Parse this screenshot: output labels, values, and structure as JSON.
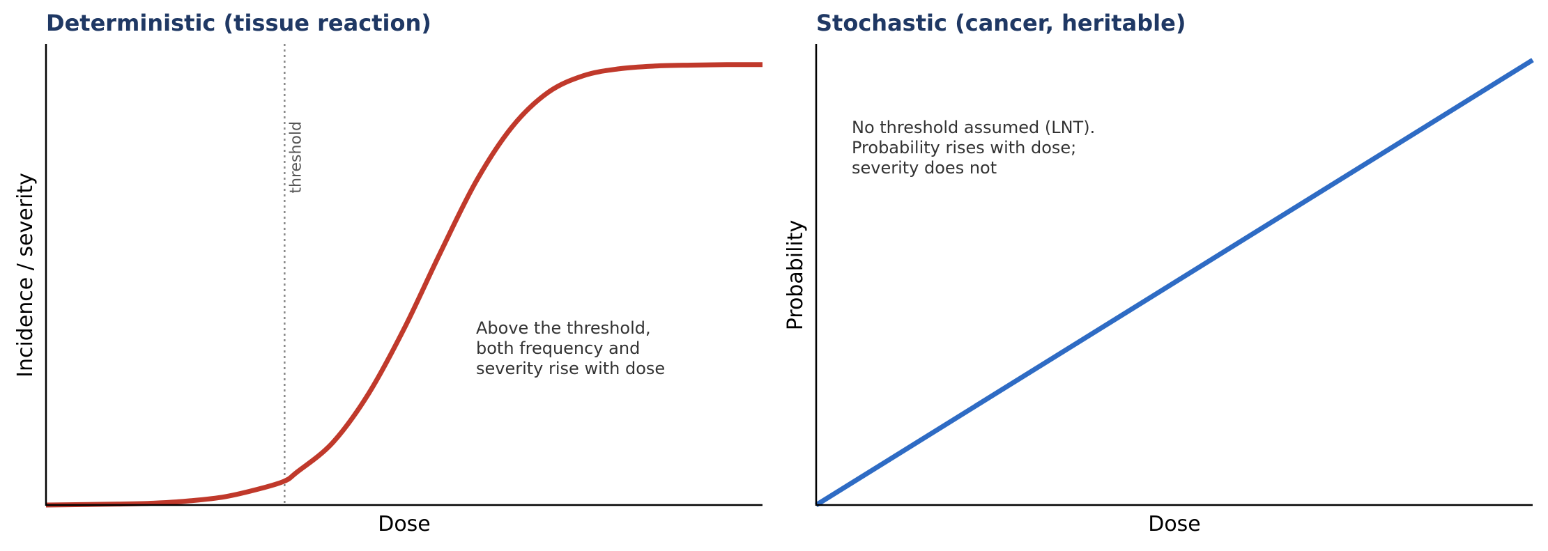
{
  "colors": {
    "title": "#1f3864",
    "deterministic_curve": "#c0392b",
    "stochastic_line": "#2e6bc4",
    "threshold_line": "#888888",
    "axis": "#000000"
  },
  "chart_data": [
    {
      "type": "line",
      "title": "Deterministic (tissue reaction)",
      "xlabel": "Dose",
      "ylabel": "Incidence / severity",
      "ticks": false,
      "grid": false,
      "xlim": [
        0,
        10
      ],
      "ylim": [
        0,
        1
      ],
      "threshold": {
        "x": 3.33,
        "label": "threshold"
      },
      "series": [
        {
          "x": [
            0,
            0.5,
            1,
            1.5,
            2,
            2.5,
            3,
            3.33,
            3.5,
            4,
            4.5,
            5,
            5.5,
            6,
            6.5,
            7,
            7.5,
            8,
            8.5,
            9,
            9.5,
            10
          ],
          "y": [
            0.0,
            0.001,
            0.002,
            0.004,
            0.009,
            0.018,
            0.036,
            0.052,
            0.071,
            0.135,
            0.241,
            0.383,
            0.546,
            0.701,
            0.819,
            0.894,
            0.931,
            0.946,
            0.952,
            0.954,
            0.955,
            0.955
          ]
        }
      ],
      "annotation": [
        "Above the threshold,",
        "both frequency and",
        "severity rise with dose"
      ]
    },
    {
      "type": "line",
      "title": "Stochastic (cancer, heritable)",
      "xlabel": "Dose",
      "ylabel": "Probability",
      "ticks": false,
      "grid": false,
      "xlim": [
        0,
        10
      ],
      "ylim": [
        0,
        1
      ],
      "series": [
        {
          "x": [
            0,
            10
          ],
          "y": [
            0,
            0.965
          ]
        }
      ],
      "annotation": [
        "No threshold assumed (LNT).",
        "Probability rises with dose;",
        "severity does not"
      ]
    }
  ]
}
